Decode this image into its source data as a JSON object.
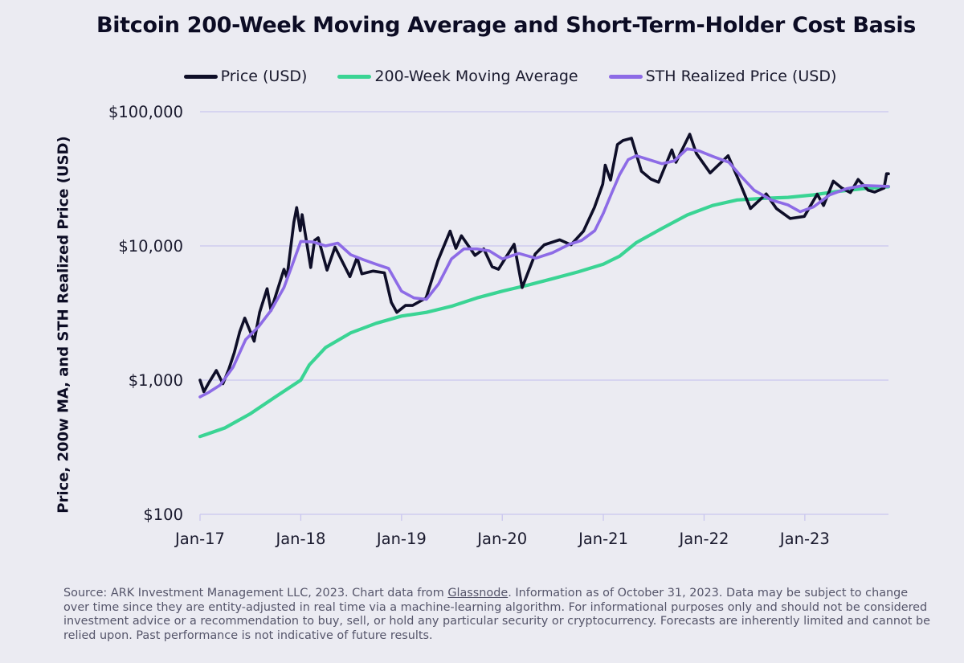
{
  "chart_data": {
    "type": "line",
    "title": "Bitcoin 200-Week Moving Average and Short-Term-Holder Cost Basis",
    "ylabel": "Price, 200w MA, and STH Realized Price (USD)",
    "xlabel": "",
    "y_scale": "log",
    "ylim": [
      100,
      130000
    ],
    "xlim": [
      "2017-01-01",
      "2023-10-31"
    ],
    "grid": "horizontal",
    "legend_position": "top",
    "x_ticks": [
      "Jan-17",
      "Jan-18",
      "Jan-19",
      "Jan-20",
      "Jan-21",
      "Jan-22",
      "Jan-23"
    ],
    "y_ticks": [
      {
        "value": 100,
        "label": "$100"
      },
      {
        "value": 1000,
        "label": "$1,000"
      },
      {
        "value": 10000,
        "label": "$10,000"
      },
      {
        "value": 100000,
        "label": "$100,000"
      }
    ],
    "series": [
      {
        "name": "Price (USD)",
        "color": "#0e0e28",
        "points": [
          [
            "2017-01-01",
            1000
          ],
          [
            "2017-01-15",
            820
          ],
          [
            "2017-02-01",
            950
          ],
          [
            "2017-03-01",
            1180
          ],
          [
            "2017-03-25",
            940
          ],
          [
            "2017-04-15",
            1200
          ],
          [
            "2017-05-05",
            1600
          ],
          [
            "2017-05-25",
            2300
          ],
          [
            "2017-06-12",
            2900
          ],
          [
            "2017-07-16",
            1950
          ],
          [
            "2017-08-05",
            3200
          ],
          [
            "2017-09-01",
            4800
          ],
          [
            "2017-09-15",
            3300
          ],
          [
            "2017-10-10",
            4800
          ],
          [
            "2017-11-01",
            6700
          ],
          [
            "2017-11-12",
            5800
          ],
          [
            "2017-12-07",
            15000
          ],
          [
            "2017-12-17",
            19300
          ],
          [
            "2017-12-30",
            13000
          ],
          [
            "2018-01-06",
            17100
          ],
          [
            "2018-02-06",
            6900
          ],
          [
            "2018-02-20",
            11000
          ],
          [
            "2018-03-05",
            11500
          ],
          [
            "2018-04-06",
            6600
          ],
          [
            "2018-05-05",
            9800
          ],
          [
            "2018-06-28",
            5900
          ],
          [
            "2018-07-24",
            8200
          ],
          [
            "2018-08-10",
            6200
          ],
          [
            "2018-09-20",
            6500
          ],
          [
            "2018-10-31",
            6300
          ],
          [
            "2018-11-25",
            3800
          ],
          [
            "2018-12-15",
            3200
          ],
          [
            "2019-01-15",
            3600
          ],
          [
            "2019-02-10",
            3600
          ],
          [
            "2019-03-31",
            4100
          ],
          [
            "2019-05-13",
            7800
          ],
          [
            "2019-06-26",
            12900
          ],
          [
            "2019-07-17",
            9600
          ],
          [
            "2019-08-06",
            11900
          ],
          [
            "2019-09-24",
            8500
          ],
          [
            "2019-10-26",
            9500
          ],
          [
            "2019-11-25",
            7000
          ],
          [
            "2019-12-18",
            6700
          ],
          [
            "2020-01-20",
            8600
          ],
          [
            "2020-02-13",
            10300
          ],
          [
            "2020-03-13",
            4900
          ],
          [
            "2020-04-29",
            8700
          ],
          [
            "2020-06-01",
            10200
          ],
          [
            "2020-07-27",
            11100
          ],
          [
            "2020-09-06",
            10200
          ],
          [
            "2020-10-21",
            12900
          ],
          [
            "2020-11-30",
            19400
          ],
          [
            "2020-12-30",
            28900
          ],
          [
            "2021-01-08",
            40000
          ],
          [
            "2021-01-27",
            31000
          ],
          [
            "2021-02-21",
            57000
          ],
          [
            "2021-03-13",
            61000
          ],
          [
            "2021-04-13",
            63500
          ],
          [
            "2021-05-19",
            36000
          ],
          [
            "2021-06-22",
            31500
          ],
          [
            "2021-07-20",
            29800
          ],
          [
            "2021-09-06",
            52000
          ],
          [
            "2021-09-21",
            42000
          ],
          [
            "2021-11-10",
            68000
          ],
          [
            "2021-12-04",
            49000
          ],
          [
            "2022-01-23",
            35000
          ],
          [
            "2022-03-29",
            47000
          ],
          [
            "2022-05-12",
            29000
          ],
          [
            "2022-06-18",
            19000
          ],
          [
            "2022-08-14",
            24400
          ],
          [
            "2022-09-20",
            19000
          ],
          [
            "2022-11-09",
            16000
          ],
          [
            "2022-12-30",
            16600
          ],
          [
            "2023-02-15",
            24300
          ],
          [
            "2023-03-10",
            20000
          ],
          [
            "2023-04-14",
            30400
          ],
          [
            "2023-05-15",
            27000
          ],
          [
            "2023-06-15",
            25000
          ],
          [
            "2023-07-13",
            31300
          ],
          [
            "2023-08-18",
            26000
          ],
          [
            "2023-09-11",
            25200
          ],
          [
            "2023-10-15",
            27000
          ],
          [
            "2023-10-24",
            34500
          ],
          [
            "2023-10-31",
            34500
          ]
        ]
      },
      {
        "name": "200-Week Moving Average",
        "color": "#3ad494",
        "points": [
          [
            "2017-01-01",
            380
          ],
          [
            "2017-04-01",
            440
          ],
          [
            "2017-07-01",
            560
          ],
          [
            "2017-10-01",
            750
          ],
          [
            "2018-01-01",
            1000
          ],
          [
            "2018-02-01",
            1300
          ],
          [
            "2018-04-01",
            1750
          ],
          [
            "2018-07-01",
            2250
          ],
          [
            "2018-10-01",
            2650
          ],
          [
            "2019-01-01",
            3000
          ],
          [
            "2019-04-01",
            3200
          ],
          [
            "2019-07-01",
            3550
          ],
          [
            "2019-10-01",
            4100
          ],
          [
            "2020-01-01",
            4600
          ],
          [
            "2020-04-01",
            5100
          ],
          [
            "2020-07-01",
            5700
          ],
          [
            "2020-10-01",
            6400
          ],
          [
            "2021-01-01",
            7300
          ],
          [
            "2021-03-01",
            8400
          ],
          [
            "2021-05-01",
            10600
          ],
          [
            "2021-08-01",
            13500
          ],
          [
            "2021-11-01",
            17000
          ],
          [
            "2022-02-01",
            20000
          ],
          [
            "2022-05-01",
            22000
          ],
          [
            "2022-08-01",
            22600
          ],
          [
            "2022-11-01",
            23000
          ],
          [
            "2023-02-01",
            24000
          ],
          [
            "2023-05-01",
            25500
          ],
          [
            "2023-08-01",
            26700
          ],
          [
            "2023-10-31",
            27600
          ]
        ]
      },
      {
        "name": "STH Realized Price (USD)",
        "color": "#8d6be6",
        "points": [
          [
            "2017-01-01",
            750
          ],
          [
            "2017-02-01",
            810
          ],
          [
            "2017-03-15",
            920
          ],
          [
            "2017-05-01",
            1250
          ],
          [
            "2017-06-15",
            2000
          ],
          [
            "2017-08-01",
            2500
          ],
          [
            "2017-09-15",
            3300
          ],
          [
            "2017-11-01",
            4900
          ],
          [
            "2017-12-01",
            7200
          ],
          [
            "2018-01-01",
            10800
          ],
          [
            "2018-02-15",
            10700
          ],
          [
            "2018-04-01",
            10000
          ],
          [
            "2018-05-15",
            10500
          ],
          [
            "2018-07-01",
            8600
          ],
          [
            "2018-08-15",
            7900
          ],
          [
            "2018-10-01",
            7300
          ],
          [
            "2018-11-15",
            6800
          ],
          [
            "2019-01-01",
            4600
          ],
          [
            "2019-02-15",
            4100
          ],
          [
            "2019-04-01",
            4000
          ],
          [
            "2019-05-15",
            5200
          ],
          [
            "2019-07-01",
            8000
          ],
          [
            "2019-08-15",
            9500
          ],
          [
            "2019-10-01",
            9500
          ],
          [
            "2019-11-15",
            9200
          ],
          [
            "2020-01-01",
            8000
          ],
          [
            "2020-03-01",
            8800
          ],
          [
            "2020-05-01",
            8100
          ],
          [
            "2020-07-01",
            8900
          ],
          [
            "2020-09-01",
            10300
          ],
          [
            "2020-10-15",
            11000
          ],
          [
            "2020-12-01",
            13000
          ],
          [
            "2021-01-01",
            17500
          ],
          [
            "2021-02-01",
            25000
          ],
          [
            "2021-03-01",
            34000
          ],
          [
            "2021-04-01",
            44000
          ],
          [
            "2021-05-01",
            47000
          ],
          [
            "2021-06-15",
            44000
          ],
          [
            "2021-08-01",
            41000
          ],
          [
            "2021-09-15",
            43000
          ],
          [
            "2021-11-01",
            53000
          ],
          [
            "2021-12-15",
            51000
          ],
          [
            "2022-02-01",
            46500
          ],
          [
            "2022-04-01",
            42000
          ],
          [
            "2022-05-15",
            33000
          ],
          [
            "2022-07-01",
            26000
          ],
          [
            "2022-09-01",
            22000
          ],
          [
            "2022-11-01",
            20200
          ],
          [
            "2022-12-15",
            18000
          ],
          [
            "2023-02-01",
            19500
          ],
          [
            "2023-04-01",
            24000
          ],
          [
            "2023-06-01",
            26700
          ],
          [
            "2023-08-01",
            28200
          ],
          [
            "2023-10-31",
            27800
          ]
        ]
      }
    ]
  },
  "source_note": {
    "before_link": "Source: ARK Investment Management LLC, 2023. Chart data from ",
    "link": "Glassnode",
    "after_link": ". Information as of October 31, 2023. Data may be subject to change over time since they are entity-adjusted in real time via a machine-learning algorithm. For informational purposes only and should not be considered investment advice or a recommendation to buy, sell, or hold any particular security or cryptocurrency. Forecasts are inherently limited and cannot be relied upon. Past performance is not indicative of future results."
  }
}
